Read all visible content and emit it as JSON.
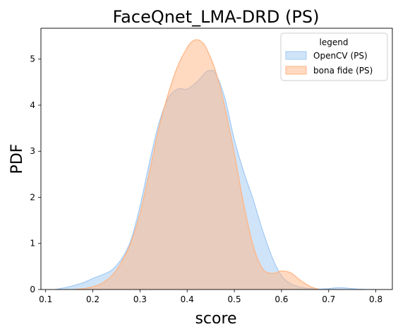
{
  "chart_data": {
    "type": "area",
    "title": "FaceQnet_LMA-DRD (PS)",
    "xlabel": "score",
    "ylabel": "PDF",
    "xlim": [
      0.09,
      0.835
    ],
    "ylim": [
      0,
      5.67
    ],
    "x_ticks": [
      0.1,
      0.2,
      0.3,
      0.4,
      0.5,
      0.6,
      0.7,
      0.8
    ],
    "y_ticks": [
      0,
      1,
      2,
      3,
      4,
      5
    ],
    "grid": false,
    "legend": {
      "title": "legend",
      "placement": "top-right"
    },
    "series": [
      {
        "name": "OpenCV (PS)",
        "fill": "#a1c9f4",
        "x": [
          0.12,
          0.15,
          0.18,
          0.2,
          0.22,
          0.24,
          0.26,
          0.28,
          0.3,
          0.32,
          0.34,
          0.36,
          0.38,
          0.4,
          0.42,
          0.44,
          0.45,
          0.46,
          0.48,
          0.5,
          0.52,
          0.54,
          0.56,
          0.58,
          0.6,
          0.62,
          0.64,
          0.66,
          0.68,
          0.7,
          0.72,
          0.74,
          0.76,
          0.78,
          0.8
        ],
        "y": [
          0.0,
          0.06,
          0.15,
          0.24,
          0.32,
          0.42,
          0.65,
          1.05,
          1.8,
          2.75,
          3.6,
          4.15,
          4.35,
          4.35,
          4.5,
          4.72,
          4.75,
          4.7,
          4.15,
          3.25,
          2.55,
          1.95,
          1.28,
          0.7,
          0.3,
          0.12,
          0.05,
          0.02,
          0.01,
          0.02,
          0.04,
          0.03,
          0.01,
          0.0,
          0.0
        ]
      },
      {
        "name": "bona fide (PS)",
        "fill": "#ffb482",
        "x": [
          0.16,
          0.18,
          0.2,
          0.22,
          0.24,
          0.26,
          0.28,
          0.3,
          0.32,
          0.34,
          0.36,
          0.38,
          0.4,
          0.41,
          0.42,
          0.43,
          0.44,
          0.46,
          0.48,
          0.5,
          0.52,
          0.54,
          0.56,
          0.58,
          0.6,
          0.62,
          0.64,
          0.66,
          0.68
        ],
        "y": [
          0.0,
          0.02,
          0.06,
          0.14,
          0.3,
          0.58,
          1.0,
          1.65,
          2.55,
          3.5,
          4.25,
          4.85,
          5.25,
          5.38,
          5.42,
          5.38,
          5.25,
          4.75,
          3.95,
          2.95,
          1.85,
          0.95,
          0.45,
          0.35,
          0.4,
          0.36,
          0.2,
          0.07,
          0.0
        ]
      }
    ]
  }
}
